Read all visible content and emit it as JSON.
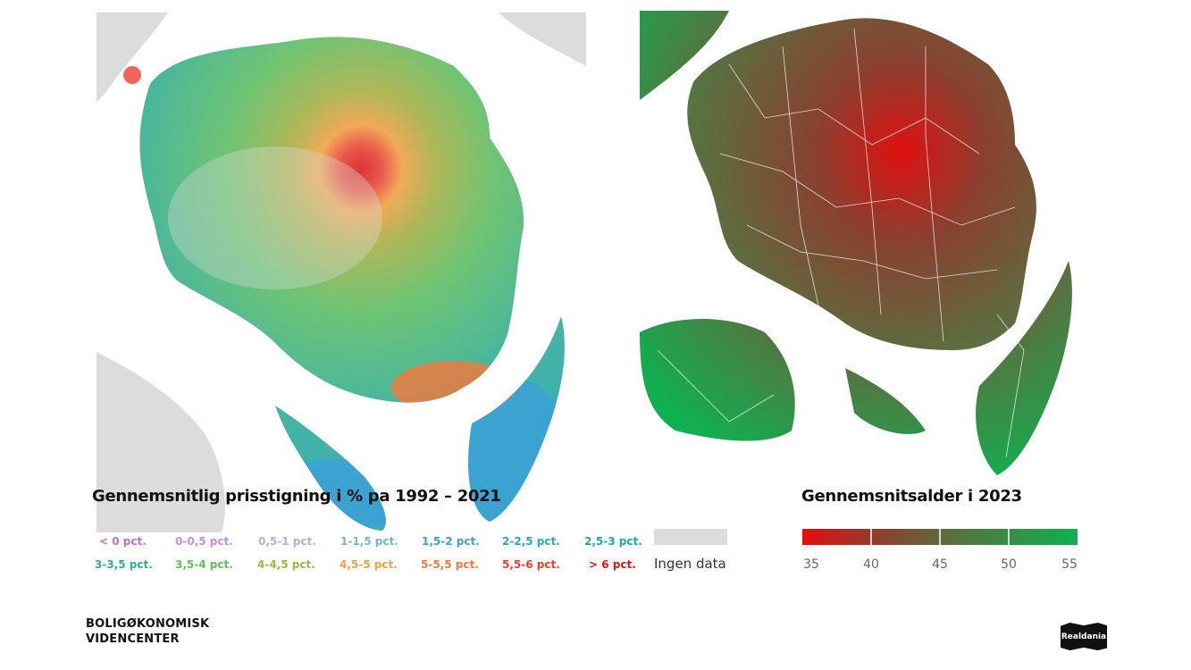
{
  "left_map": {
    "title": "Gennemsnitlig prisstigning i % pa 1992 – 2021",
    "legend": [
      {
        "label": "< 0 pct.",
        "color": "#c070c8"
      },
      {
        "label": "0-0,5 pct.",
        "color": "#c490d8"
      },
      {
        "label": "0,5-1 pct.",
        "color": "#b0b0e0"
      },
      {
        "label": "1-1,5 pct.",
        "color": "#7ab0e0"
      },
      {
        "label": "1,5-2 pct.",
        "color": "#3a9ee0"
      },
      {
        "label": "2-2,5 pct.",
        "color": "#2aa8c0"
      },
      {
        "label": "2,5-3 pct.",
        "color": "#20a8a8"
      },
      {
        "label": "3-3,5 pct.",
        "color": "#30b090"
      },
      {
        "label": "3,5-4 pct.",
        "color": "#5cc060"
      },
      {
        "label": "4-4,5 pct.",
        "color": "#a8b040"
      },
      {
        "label": "4,5-5 pct.",
        "color": "#f4a040"
      },
      {
        "label": "5-5,5 pct.",
        "color": "#f47838"
      },
      {
        "label": "5,5-6 pct.",
        "color": "#ec4030"
      },
      {
        "label": "> 6 pct.",
        "color": "#d81818"
      }
    ],
    "no_data_label": "Ingen data",
    "no_data_color": "#dcdcdc"
  },
  "right_map": {
    "title": "Gennemsnitsalder i 2023",
    "scale_ticks": [
      "35",
      "40",
      "45",
      "50",
      "55"
    ],
    "scale_min_color": "#e01010",
    "scale_mid_color": "#8a4030",
    "scale_max_color": "#10b050"
  },
  "footer": {
    "logo_left_line1": "BOLIGØKONOMISK",
    "logo_left_line2": "VIDENCENTER",
    "logo_right": "Realdania"
  }
}
